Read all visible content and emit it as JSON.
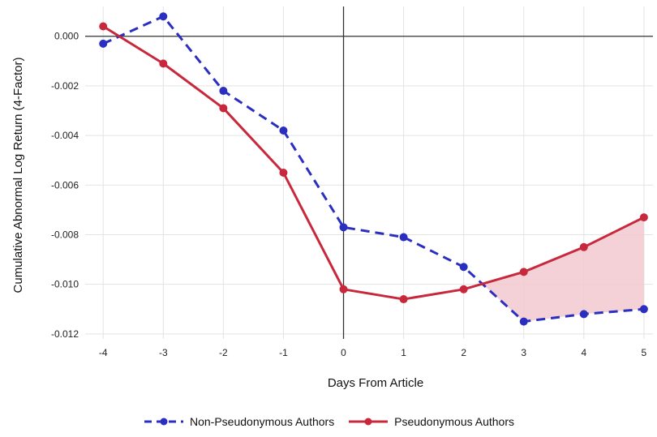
{
  "chart_data": {
    "type": "line",
    "xlabel": "Days From Article",
    "ylabel": "Cumulative Abnormal Log Return (4-Factor)",
    "x": [
      -4,
      -3,
      -2,
      -1,
      0,
      1,
      2,
      3,
      4,
      5
    ],
    "xlim": [
      -4.3,
      5.15
    ],
    "ylim": [
      -0.0122,
      0.0012
    ],
    "yticks": [
      "0.000",
      "-0.002",
      "-0.004",
      "-0.006",
      "-0.008",
      "-0.010",
      "-0.012"
    ],
    "grid": true,
    "legend_position": "bottom",
    "shaded_region": "between series where pseudonymous exceeds non-pseudonymous",
    "series": [
      {
        "name": "Non-Pseudonymous Authors",
        "color": "#2b2fbf",
        "style": "dashed",
        "values": [
          -0.0003,
          0.0008,
          -0.0022,
          -0.0038,
          -0.0077,
          -0.0081,
          -0.0093,
          -0.0115,
          -0.0112,
          -0.011
        ]
      },
      {
        "name": "Pseudonymous Authors",
        "color": "#c8283c",
        "style": "solid",
        "values": [
          0.0004,
          -0.0011,
          -0.0029,
          -0.0055,
          -0.0102,
          -0.0106,
          -0.0102,
          -0.0095,
          -0.0085,
          -0.0073
        ]
      }
    ],
    "shade_color": "#f2c9cf"
  }
}
